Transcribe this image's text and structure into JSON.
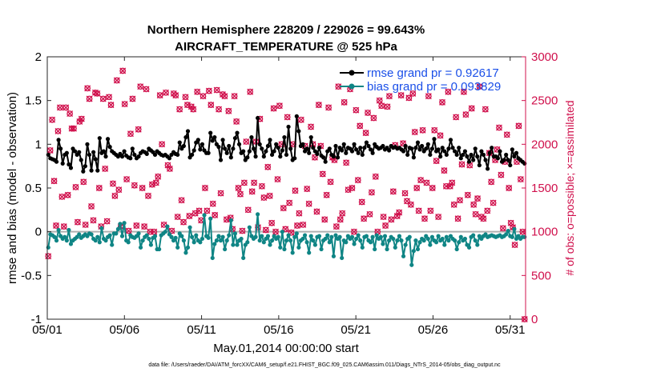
{
  "chart_data": {
    "type": "line",
    "title": "Northern Hemisphere 228209 / 229026 = 99.643%",
    "subtitle": "AIRCRAFT_TEMPERATURE @ 525 hPa",
    "xlabel": "May.01,2014 00:00:00 start",
    "ylabel": "rmse and bias (model - observation)",
    "ylabel_right": "# of obs: o=possible; ×=assimilated",
    "footer": "data file: /Users/raeder/DAI/ATM_forcXX/CAM6_setup/f.e21.FHIST_BGC.f09_025.CAM6assim.011/Diags_NTrS_2014-05/obs_diag_output.nc",
    "xlim": [
      1,
      32
    ],
    "ylim": [
      -1,
      2
    ],
    "ylim_right": [
      0,
      3000
    ],
    "x_ticks": [
      1,
      6,
      11,
      16,
      21,
      26,
      31
    ],
    "x_tick_labels": [
      "05/01",
      "05/06",
      "05/11",
      "05/16",
      "05/21",
      "05/26",
      "05/31"
    ],
    "y_ticks": [
      -1,
      -0.5,
      0,
      0.5,
      1,
      1.5,
      2
    ],
    "y_tick_labels": [
      "-1",
      "-0.5",
      "0",
      "0.5",
      "1",
      "1.5",
      "2"
    ],
    "y_right_ticks": [
      0,
      500,
      1000,
      1500,
      2000,
      2500,
      3000
    ],
    "y_right_tick_labels": [
      "0",
      "500",
      "1000",
      "1500",
      "2000",
      "2500",
      "3000"
    ],
    "zero_line": 0,
    "legend_position": "top-right",
    "colors": {
      "rmse": "#000000",
      "bias": "#0f8585",
      "obs": "#d0104c",
      "zero": "#b0b0b0",
      "legend_text": "#1a4fe8"
    },
    "series": [
      {
        "name": "rmse grand pr = 0.92617",
        "axis": "left",
        "color": "#000000",
        "marker": "circle",
        "values": [
          0.88,
          0.84,
          0.83,
          0.82,
          0.8,
          1.05,
          0.95,
          0.78,
          0.88,
          0.9,
          0.77,
          0.73,
          0.95,
          0.92,
          0.88,
          0.91,
          0.82,
          0.69,
          0.75,
          1.0,
          0.88,
          0.7,
          0.91,
          0.83,
          0.7,
          1.07,
          0.9,
          0.92,
          0.86,
          1.06,
          0.97,
          0.92,
          0.9,
          0.88,
          0.86,
          0.89,
          0.86,
          0.92,
          0.87,
          0.85,
          0.84,
          0.95,
          0.88,
          0.84,
          0.86,
          0.9,
          0.92,
          0.91,
          0.89,
          0.95,
          0.93,
          0.91,
          0.88,
          0.92,
          0.9,
          0.88,
          0.87,
          0.88,
          0.86,
          0.84,
          0.88,
          0.91,
          0.89,
          0.88,
          1.02,
          0.95,
          0.98,
          1.08,
          1.15,
          0.85,
          0.88,
          0.93,
          1.02,
          1.05,
          0.94,
          1.0,
          0.93,
          0.9,
          0.9,
          1.13,
          1.04,
          1.08,
          1.0,
          0.97,
          0.82,
          1.05,
          0.95,
          0.9,
          0.98,
          0.85,
          0.95,
          1.07,
          1.13,
          1.0,
          0.9,
          0.92,
          0.82,
          0.85,
          0.92,
          1.08,
          0.95,
          0.86,
          1.3,
          1.0,
          0.95,
          0.86,
          0.92,
          0.98,
          1.05,
          0.88,
          0.92,
          1.0,
          0.96,
          0.86,
          0.93,
          1.08,
          0.88,
          1.2,
          0.95,
          0.82,
          0.84,
          1.32,
          1.15,
          0.98,
          1.0,
          0.92,
          0.95,
          0.9,
          1.08,
          0.96,
          0.92,
          0.89,
          0.96,
          0.87,
          0.85,
          0.8,
          0.92,
          0.95,
          0.88,
          0.86,
          0.98,
          0.85,
          0.96,
          0.93,
          1.0,
          0.9,
          0.96,
          0.95,
          0.92,
          1.0,
          0.94,
          0.9,
          0.96,
          0.88,
          0.96,
          1.02,
          0.98,
          0.94,
          0.9,
          1.0,
          0.97,
          0.95,
          0.96,
          0.98,
          0.94,
          0.96,
          0.93,
          0.98,
          0.96,
          0.97,
          0.95,
          0.96,
          0.94,
          0.92,
          0.98,
          0.88,
          0.96,
          0.95,
          0.85,
          0.96,
          1.02,
          0.94,
          0.98,
          0.92,
          0.95,
          1.0,
          0.88,
          0.95,
          1.06,
          0.92,
          0.94,
          0.86,
          0.96,
          0.92,
          0.88,
          0.95,
          1.05,
          0.96,
          0.92,
          0.88,
          0.96,
          0.84,
          0.88,
          0.92,
          0.86,
          0.8,
          0.88,
          0.82,
          0.95,
          0.86,
          0.76,
          0.92,
          0.88,
          0.82,
          0.72,
          0.9,
          0.96,
          0.86,
          0.86,
          0.84,
          0.92,
          0.8,
          0.82,
          0.88,
          0.82,
          0.76,
          0.94,
          0.86,
          0.9,
          0.84,
          0.82,
          0.8,
          0.78
        ]
      },
      {
        "name": "bias grand pr = 0.093829",
        "axis": "left",
        "color": "#0f8585",
        "marker": "circle",
        "values": [
          -0.18,
          -0.03,
          -0.04,
          -0.06,
          -0.1,
          0.02,
          -0.05,
          -0.08,
          -0.06,
          -0.1,
          0.02,
          -0.14,
          -0.1,
          -0.08,
          -0.06,
          -0.03,
          -0.07,
          -0.05,
          -0.03,
          -0.05,
          -0.02,
          -0.03,
          -0.08,
          -0.1,
          -0.06,
          -0.12,
          0.04,
          -0.08,
          -0.1,
          -0.06,
          -0.04,
          -0.15,
          -0.02,
          -0.02,
          0.03,
          0.09,
          -0.05,
          0.1,
          -0.1,
          -0.12,
          -0.04,
          -0.06,
          -0.07,
          -0.05,
          -0.02,
          -0.18,
          -0.1,
          -0.06,
          -0.04,
          -0.08,
          -0.15,
          -0.07,
          -0.05,
          -0.2,
          -0.2,
          -0.04,
          -0.02,
          0.0,
          0.06,
          -0.03,
          -0.06,
          -0.1,
          -0.07,
          -0.18,
          -0.02,
          -0.05,
          -0.1,
          -0.24,
          -0.18,
          0.05,
          -0.06,
          -0.12,
          -0.04,
          -0.1,
          -0.12,
          -0.08,
          0.19,
          -0.05,
          -0.07,
          0.15,
          -0.3,
          -0.14,
          -0.1,
          -0.05,
          -0.1,
          -0.06,
          -0.2,
          -0.1,
          -0.04,
          0.13,
          -0.15,
          -0.02,
          -0.15,
          -0.1,
          -0.08,
          -0.3,
          -0.15,
          -0.12,
          0.05,
          -0.05,
          -0.08,
          -0.06,
          0.2,
          -0.1,
          -0.05,
          -0.12,
          -0.08,
          -0.05,
          -0.15,
          -0.1,
          -0.05,
          -0.08,
          -0.06,
          -0.18,
          0.0,
          -0.2,
          -0.1,
          -0.04,
          -0.1,
          -0.24,
          -0.06,
          -0.02,
          -0.18,
          -0.1,
          -0.08,
          -0.04,
          -0.12,
          -0.24,
          -0.05,
          -0.1,
          -0.15,
          -0.06,
          -0.05,
          -0.2,
          -0.1,
          -0.08,
          -0.04,
          -0.12,
          -0.06,
          -0.28,
          -0.04,
          -0.08,
          -0.06,
          -0.3,
          -0.1,
          -0.12,
          -0.05,
          -0.08,
          -0.06,
          -0.14,
          -0.08,
          -0.04,
          -0.1,
          -0.18,
          -0.06,
          -0.05,
          -0.1,
          -0.12,
          -0.06,
          -0.2,
          -0.04,
          -0.08,
          -0.06,
          -0.14,
          -0.05,
          -0.2,
          -0.1,
          -0.06,
          -0.08,
          -0.18,
          -0.1,
          -0.05,
          -0.1,
          -0.28,
          -0.15,
          -0.08,
          -0.06,
          -0.38,
          -0.22,
          -0.1,
          -0.2,
          -0.12,
          -0.08,
          -0.1,
          -0.05,
          -0.08,
          -0.15,
          -0.06,
          -0.1,
          -0.12,
          -0.05,
          -0.1,
          -0.08,
          -0.15,
          -0.06,
          -0.1,
          -0.05,
          -0.08,
          -0.1,
          -0.2,
          -0.12,
          -0.06,
          -0.1,
          -0.08,
          -0.15,
          -0.18,
          -0.06,
          -0.04,
          -0.1,
          -0.15,
          -0.05,
          -0.08,
          -0.05,
          -0.03,
          -0.06,
          -0.05,
          -0.04,
          -0.05,
          -0.06,
          -0.05,
          -0.04,
          -0.06,
          -0.05,
          -0.03,
          0.01,
          -0.05,
          -0.06,
          0.03,
          -0.08,
          -0.05,
          -0.08,
          -0.06,
          -0.06
        ]
      },
      {
        "name": "# of obs (possible & assimilated)",
        "axis": "right",
        "color": "#d0104c",
        "marker": "star",
        "values": [
          720,
          1930,
          2280,
          1580,
          1070,
          2150,
          2420,
          1400,
          1060,
          2420,
          1420,
          2350,
          2180,
          2180,
          1510,
          1110,
          2260,
          2290,
          1570,
          1080,
          2640,
          2520,
          1290,
          1130,
          2590,
          2580,
          1500,
          1060,
          2520,
          1720,
          1120,
          2540,
          2450,
          1550,
          1410,
          2730,
          1480,
          1060,
          2840,
          2460,
          1600,
          1010,
          2120,
          2520,
          1530,
          1070,
          2170,
          2660,
          1500,
          1060,
          2630,
          1410,
          1000,
          1540,
          1000,
          1560,
          1630,
          2560,
          2000,
          1080,
          2590,
          1760,
          1720,
          1010,
          2580,
          2560,
          1170,
          2400,
          1360,
          1110,
          2540,
          2450,
          1180,
          2430,
          2400,
          1210,
          2600,
          1240,
          1130,
          2550,
          1500,
          1240,
          2610,
          2450,
          1320,
          1190,
          2620,
          2400,
          1440,
          2570,
          2550,
          1140,
          2380,
          1160,
          1030,
          2550,
          2260,
          1500,
          1430,
          1010,
          1560,
          2030,
          1250,
          2600,
          1460,
          1560,
          2030,
          1050,
          2290,
          1520,
          1390,
          1020,
          1740,
          1410,
          1100,
          2410,
          1000,
          1600,
          2440,
          2000,
          1270,
          1030,
          2310,
          1330,
          990,
          2000,
          1470,
          1070,
          1210,
          2280,
          1080,
          1980,
          1490,
          1320,
          2200,
          2000,
          1850,
          1230,
          2450,
          1980,
          1660,
          1140,
          1420,
          2420,
          1570,
          1850,
          1820,
          1060,
          2660,
          1140,
          1210,
          2480,
          1790,
          1480,
          2630,
          1500,
          1000,
          2390,
          1590,
          2210,
          1340,
          1150,
          2130,
          2360,
          1200,
          1450,
          2300,
          1630,
          1000,
          2500,
          2440,
          1170,
          1070,
          2430,
          2550,
          1140,
          1460,
          1990,
          1180,
          1220,
          2560,
          2010,
          1440,
          1350,
          2530,
          1310,
          2580,
          2140,
          1500,
          1240,
          1590,
          2160,
          1150,
          1560,
          2550,
          1240,
          1500,
          2160,
          1810,
          1170,
          2100,
          2480,
          1700,
          1520,
          2600,
          1520,
          1560,
          1310,
          2310,
          1150,
          1360,
          1770,
          2600,
          2340,
          1420,
          1760,
          2410,
          1310,
          1200,
          1380,
          2660,
          1170,
          1150,
          2400,
          1240,
          1900,
          1570,
          1330,
          1820,
          1940,
          2190,
          1650,
          1040,
          1800,
          2110,
          1500,
          1100,
          1050,
          850,
          1800,
          2210,
          1600,
          1000,
          0
        ]
      }
    ]
  }
}
